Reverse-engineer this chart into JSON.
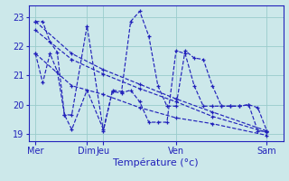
{
  "background_color": "#cce8ea",
  "grid_color": "#99cccc",
  "line_color": "#2222bb",
  "xlabel": "Température (°c)",
  "ylim": [
    18.75,
    23.4
  ],
  "yticks": [
    19,
    20,
    21,
    22,
    23
  ],
  "xlim": [
    0,
    7.0
  ],
  "day_ticks": [
    0.18,
    1.6,
    2.05,
    4.05,
    6.55
  ],
  "day_labels": [
    "Mer",
    "Dim",
    "Jeu",
    "Ven",
    "Sam"
  ],
  "lines": [
    {
      "x": [
        0.18,
        0.38,
        0.58,
        0.78,
        0.98,
        1.18,
        1.6,
        2.05,
        2.3,
        2.55,
        2.8,
        3.05,
        3.3,
        3.55,
        3.8,
        4.05,
        4.3,
        4.55,
        4.8,
        5.05,
        5.3,
        5.55,
        5.8,
        6.05,
        6.3,
        6.55
      ],
      "y": [
        22.85,
        22.85,
        22.15,
        21.8,
        19.65,
        19.65,
        22.7,
        19.1,
        20.5,
        20.45,
        22.85,
        23.2,
        22.35,
        20.65,
        19.95,
        19.95,
        21.85,
        21.6,
        21.55,
        20.65,
        19.95,
        19.95,
        19.95,
        20.0,
        19.1,
        19.1
      ]
    },
    {
      "x": [
        0.18,
        0.38,
        0.58,
        0.78,
        0.98,
        1.18,
        1.6,
        2.05,
        2.3,
        2.55,
        2.8,
        3.05,
        3.3,
        3.55,
        3.8,
        4.05,
        4.3,
        4.55,
        4.8,
        5.05,
        5.3,
        5.55,
        5.8,
        6.05,
        6.3,
        6.55
      ],
      "y": [
        21.75,
        20.75,
        21.75,
        21.15,
        19.65,
        19.15,
        20.5,
        19.15,
        20.45,
        20.4,
        20.5,
        20.1,
        19.4,
        19.4,
        19.4,
        21.85,
        21.75,
        20.65,
        19.95,
        19.95,
        19.95,
        19.95,
        19.95,
        20.0,
        19.9,
        19.1
      ]
    },
    {
      "x": [
        0.18,
        1.18,
        2.05,
        3.05,
        4.05,
        5.05,
        6.55
      ],
      "y": [
        22.85,
        21.75,
        21.2,
        20.7,
        20.2,
        19.75,
        19.1
      ]
    },
    {
      "x": [
        0.18,
        1.18,
        2.05,
        3.05,
        4.05,
        5.05,
        6.55
      ],
      "y": [
        22.55,
        21.55,
        21.05,
        20.55,
        20.1,
        19.6,
        19.05
      ]
    },
    {
      "x": [
        0.18,
        1.18,
        2.05,
        3.05,
        4.05,
        5.05,
        6.55
      ],
      "y": [
        21.75,
        20.65,
        20.35,
        19.9,
        19.55,
        19.35,
        18.95
      ]
    }
  ]
}
